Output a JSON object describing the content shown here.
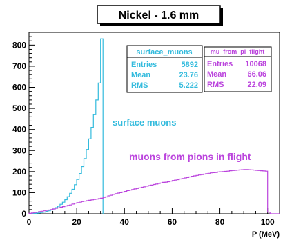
{
  "chart_data": {
    "type": "histogram",
    "title": "Nickel - 1.6 mm",
    "xlabel": "P (MeV)",
    "ylabel": "",
    "xlim": [
      0,
      105
    ],
    "ylim": [
      0,
      860
    ],
    "x_ticks": [
      0,
      20,
      40,
      60,
      80,
      100
    ],
    "y_ticks": [
      0,
      100,
      200,
      300,
      400,
      500,
      600,
      700,
      800
    ],
    "bin_width": 1,
    "series": [
      {
        "name": "surface_muons",
        "color": "#33bbdd",
        "bin_start": 0,
        "values": [
          0,
          1,
          2,
          3,
          4,
          6,
          8,
          11,
          14,
          18,
          23,
          29,
          36,
          45,
          55,
          67,
          81,
          97,
          116,
          138,
          163,
          191,
          224,
          262,
          305,
          355,
          410,
          470,
          540,
          620,
          830
        ],
        "stats": {
          "Entries": "5892",
          "Mean": "23.76",
          "RMS": "5.222"
        },
        "annotation": "surface muons"
      },
      {
        "name": "mu_from_pi_flight",
        "color": "#bb44dd",
        "bin_start": 0,
        "values": [
          2,
          4,
          6,
          8,
          10,
          12,
          14,
          16,
          18,
          20,
          23,
          26,
          28,
          31,
          34,
          37,
          40,
          42,
          46,
          50,
          53,
          55,
          58,
          60,
          62,
          64,
          66,
          68,
          70,
          72,
          74,
          78,
          80,
          85,
          88,
          92,
          95,
          98,
          100,
          103,
          106,
          110,
          112,
          115,
          118,
          120,
          123,
          126,
          128,
          131,
          134,
          136,
          139,
          141,
          144,
          146,
          149,
          150,
          152,
          155,
          158,
          160,
          162,
          165,
          167,
          170,
          172,
          175,
          178,
          180,
          182,
          184,
          186,
          188,
          190,
          192,
          194,
          195,
          196,
          198,
          199,
          200,
          201,
          202,
          204,
          205,
          206,
          207,
          208,
          209,
          210,
          210,
          209,
          208,
          207,
          206,
          205,
          204,
          203,
          202,
          8,
          0,
          0,
          0,
          0
        ],
        "stats": {
          "Entries": "10068",
          "Mean": "66.06",
          "RMS": "22.09"
        },
        "annotation": "muons from pions in flight"
      }
    ]
  }
}
